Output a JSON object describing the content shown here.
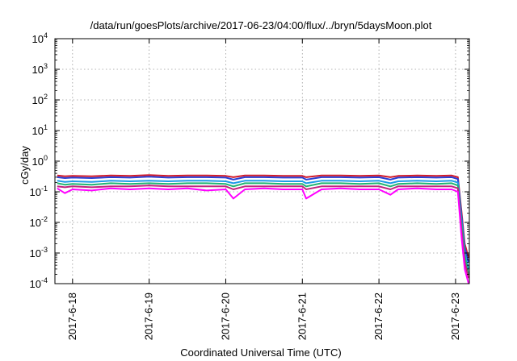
{
  "chart_data": {
    "type": "line",
    "title": "/data/run/goesPlots/archive/2017-06-23/04:00/flux/../bryn/5daysMoon.plot",
    "xlabel": "Coordinated Universal Time (UTC)",
    "ylabel": "cGy/day",
    "yscale": "log",
    "ylim": [
      0.0001,
      10000
    ],
    "xlim": [
      -0.23,
      5.18
    ],
    "y_ticks": [
      {
        "base": "10",
        "exp": "-4"
      },
      {
        "base": "10",
        "exp": "-3"
      },
      {
        "base": "10",
        "exp": "-2"
      },
      {
        "base": "10",
        "exp": "-1"
      },
      {
        "base": "10",
        "exp": "0"
      },
      {
        "base": "10",
        "exp": "1"
      },
      {
        "base": "10",
        "exp": "2"
      },
      {
        "base": "10",
        "exp": "3"
      },
      {
        "base": "10",
        "exp": "4"
      }
    ],
    "x_ticks": [
      "2017-6-18",
      "2017-6-19",
      "2017-6-20",
      "2017-6-21",
      "2017-6-22",
      "2017-6-23"
    ],
    "grid": true,
    "x": [
      -0.2,
      -0.1,
      0.0,
      0.25,
      0.5,
      0.75,
      1.0,
      1.25,
      1.5,
      1.75,
      2.0,
      2.1,
      2.25,
      2.5,
      2.75,
      3.0,
      3.05,
      3.25,
      3.5,
      3.75,
      4.0,
      4.15,
      4.25,
      4.5,
      4.75,
      4.95,
      5.03,
      5.08,
      5.12,
      5.17
    ],
    "series": [
      {
        "color": "#d11a2a",
        "values": [
          0.34,
          0.32,
          0.33,
          0.32,
          0.34,
          0.33,
          0.35,
          0.33,
          0.34,
          0.34,
          0.33,
          0.3,
          0.34,
          0.34,
          0.33,
          0.33,
          0.3,
          0.34,
          0.34,
          0.33,
          0.34,
          0.3,
          0.33,
          0.34,
          0.33,
          0.34,
          0.3,
          0.02,
          0.002,
          0.0007
        ]
      },
      {
        "color": "#2a3fd4",
        "values": [
          0.3,
          0.28,
          0.29,
          0.28,
          0.3,
          0.29,
          0.31,
          0.29,
          0.3,
          0.3,
          0.29,
          0.25,
          0.3,
          0.3,
          0.29,
          0.29,
          0.25,
          0.3,
          0.3,
          0.29,
          0.3,
          0.25,
          0.29,
          0.3,
          0.29,
          0.3,
          0.26,
          0.015,
          0.0015,
          0.0005
        ]
      },
      {
        "color": "#1e9be8",
        "values": [
          0.23,
          0.21,
          0.22,
          0.21,
          0.23,
          0.22,
          0.23,
          0.22,
          0.23,
          0.23,
          0.22,
          0.19,
          0.23,
          0.23,
          0.22,
          0.22,
          0.19,
          0.23,
          0.23,
          0.22,
          0.23,
          0.19,
          0.22,
          0.23,
          0.22,
          0.23,
          0.2,
          0.01,
          0.001,
          0.0003
        ]
      },
      {
        "color": "#20b573",
        "values": [
          0.19,
          0.17,
          0.18,
          0.17,
          0.19,
          0.18,
          0.19,
          0.18,
          0.19,
          0.19,
          0.18,
          0.15,
          0.19,
          0.19,
          0.18,
          0.18,
          0.15,
          0.19,
          0.19,
          0.18,
          0.19,
          0.15,
          0.18,
          0.19,
          0.18,
          0.19,
          0.16,
          0.008,
          0.0008,
          0.0002
        ]
      },
      {
        "color": "#c0237e",
        "values": [
          0.15,
          0.14,
          0.15,
          0.14,
          0.15,
          0.15,
          0.16,
          0.15,
          0.15,
          0.15,
          0.15,
          0.12,
          0.15,
          0.15,
          0.15,
          0.15,
          0.12,
          0.15,
          0.15,
          0.15,
          0.15,
          0.12,
          0.15,
          0.15,
          0.15,
          0.15,
          0.13,
          0.005,
          0.0005,
          0.00015
        ]
      },
      {
        "color": "#ff00ff",
        "values": [
          0.13,
          0.09,
          0.12,
          0.11,
          0.13,
          0.12,
          0.13,
          0.12,
          0.13,
          0.11,
          0.12,
          0.06,
          0.12,
          0.13,
          0.12,
          0.12,
          0.06,
          0.12,
          0.13,
          0.12,
          0.12,
          0.08,
          0.12,
          0.13,
          0.12,
          0.12,
          0.1,
          0.003,
          0.0003,
          0.0001
        ]
      }
    ]
  }
}
